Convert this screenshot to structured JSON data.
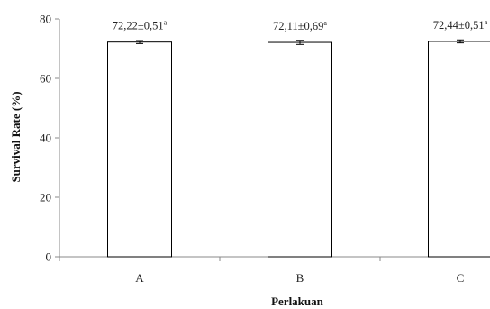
{
  "chart_data": {
    "type": "bar",
    "categories": [
      "A",
      "B",
      "C"
    ],
    "values": [
      72.22,
      72.11,
      72.44
    ],
    "errors": [
      0.51,
      0.69,
      0.51
    ],
    "data_labels": [
      "72,22±0,51",
      "72,11±0,69",
      "72,44±0,51"
    ],
    "significance": [
      "a",
      "a",
      "a"
    ],
    "xlabel": "Perlakuan",
    "ylabel": "Survival Rate (%)",
    "ylim": [
      0,
      80
    ],
    "yticks": [
      "0",
      "20",
      "40",
      "60",
      "80"
    ],
    "grid": false,
    "bar_color": "#ffffff",
    "bar_edge_color": "#000000"
  }
}
